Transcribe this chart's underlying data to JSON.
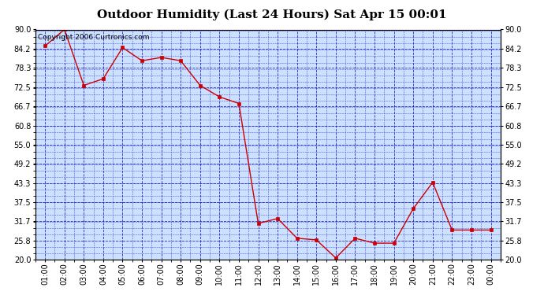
{
  "title": "Outdoor Humidity (Last 24 Hours) Sat Apr 15 00:01",
  "copyright": "Copyright 2006 Curtronics.com",
  "x_labels": [
    "01:00",
    "02:00",
    "03:00",
    "04:00",
    "05:00",
    "06:00",
    "07:00",
    "08:00",
    "09:00",
    "10:00",
    "11:00",
    "12:00",
    "13:00",
    "14:00",
    "15:00",
    "16:00",
    "17:00",
    "18:00",
    "19:00",
    "20:00",
    "21:00",
    "22:00",
    "23:00",
    "00:00"
  ],
  "y_values": [
    85.0,
    90.0,
    73.0,
    75.0,
    84.5,
    80.5,
    81.5,
    80.5,
    73.0,
    69.5,
    67.5,
    31.0,
    32.5,
    26.5,
    26.0,
    20.5,
    26.5,
    25.0,
    25.0,
    35.5,
    43.5,
    29.0,
    29.0,
    29.0
  ],
  "ylim_min": 20.0,
  "ylim_max": 90.0,
  "yticks": [
    20.0,
    25.8,
    31.7,
    37.5,
    43.3,
    49.2,
    55.0,
    60.8,
    66.7,
    72.5,
    78.3,
    84.2,
    90.0
  ],
  "ytick_labels": [
    "20.0",
    "25.8",
    "31.7",
    "37.5",
    "43.3",
    "49.2",
    "55.0",
    "60.8",
    "66.7",
    "72.5",
    "78.3",
    "84.2",
    "90.0"
  ],
  "line_color": "#cc0000",
  "marker": "s",
  "marker_size": 2.5,
  "plot_bg_color": "#cce0ff",
  "grid_color": "#0000bb",
  "title_fontsize": 11,
  "tick_fontsize": 7,
  "copyright_fontsize": 6.5
}
